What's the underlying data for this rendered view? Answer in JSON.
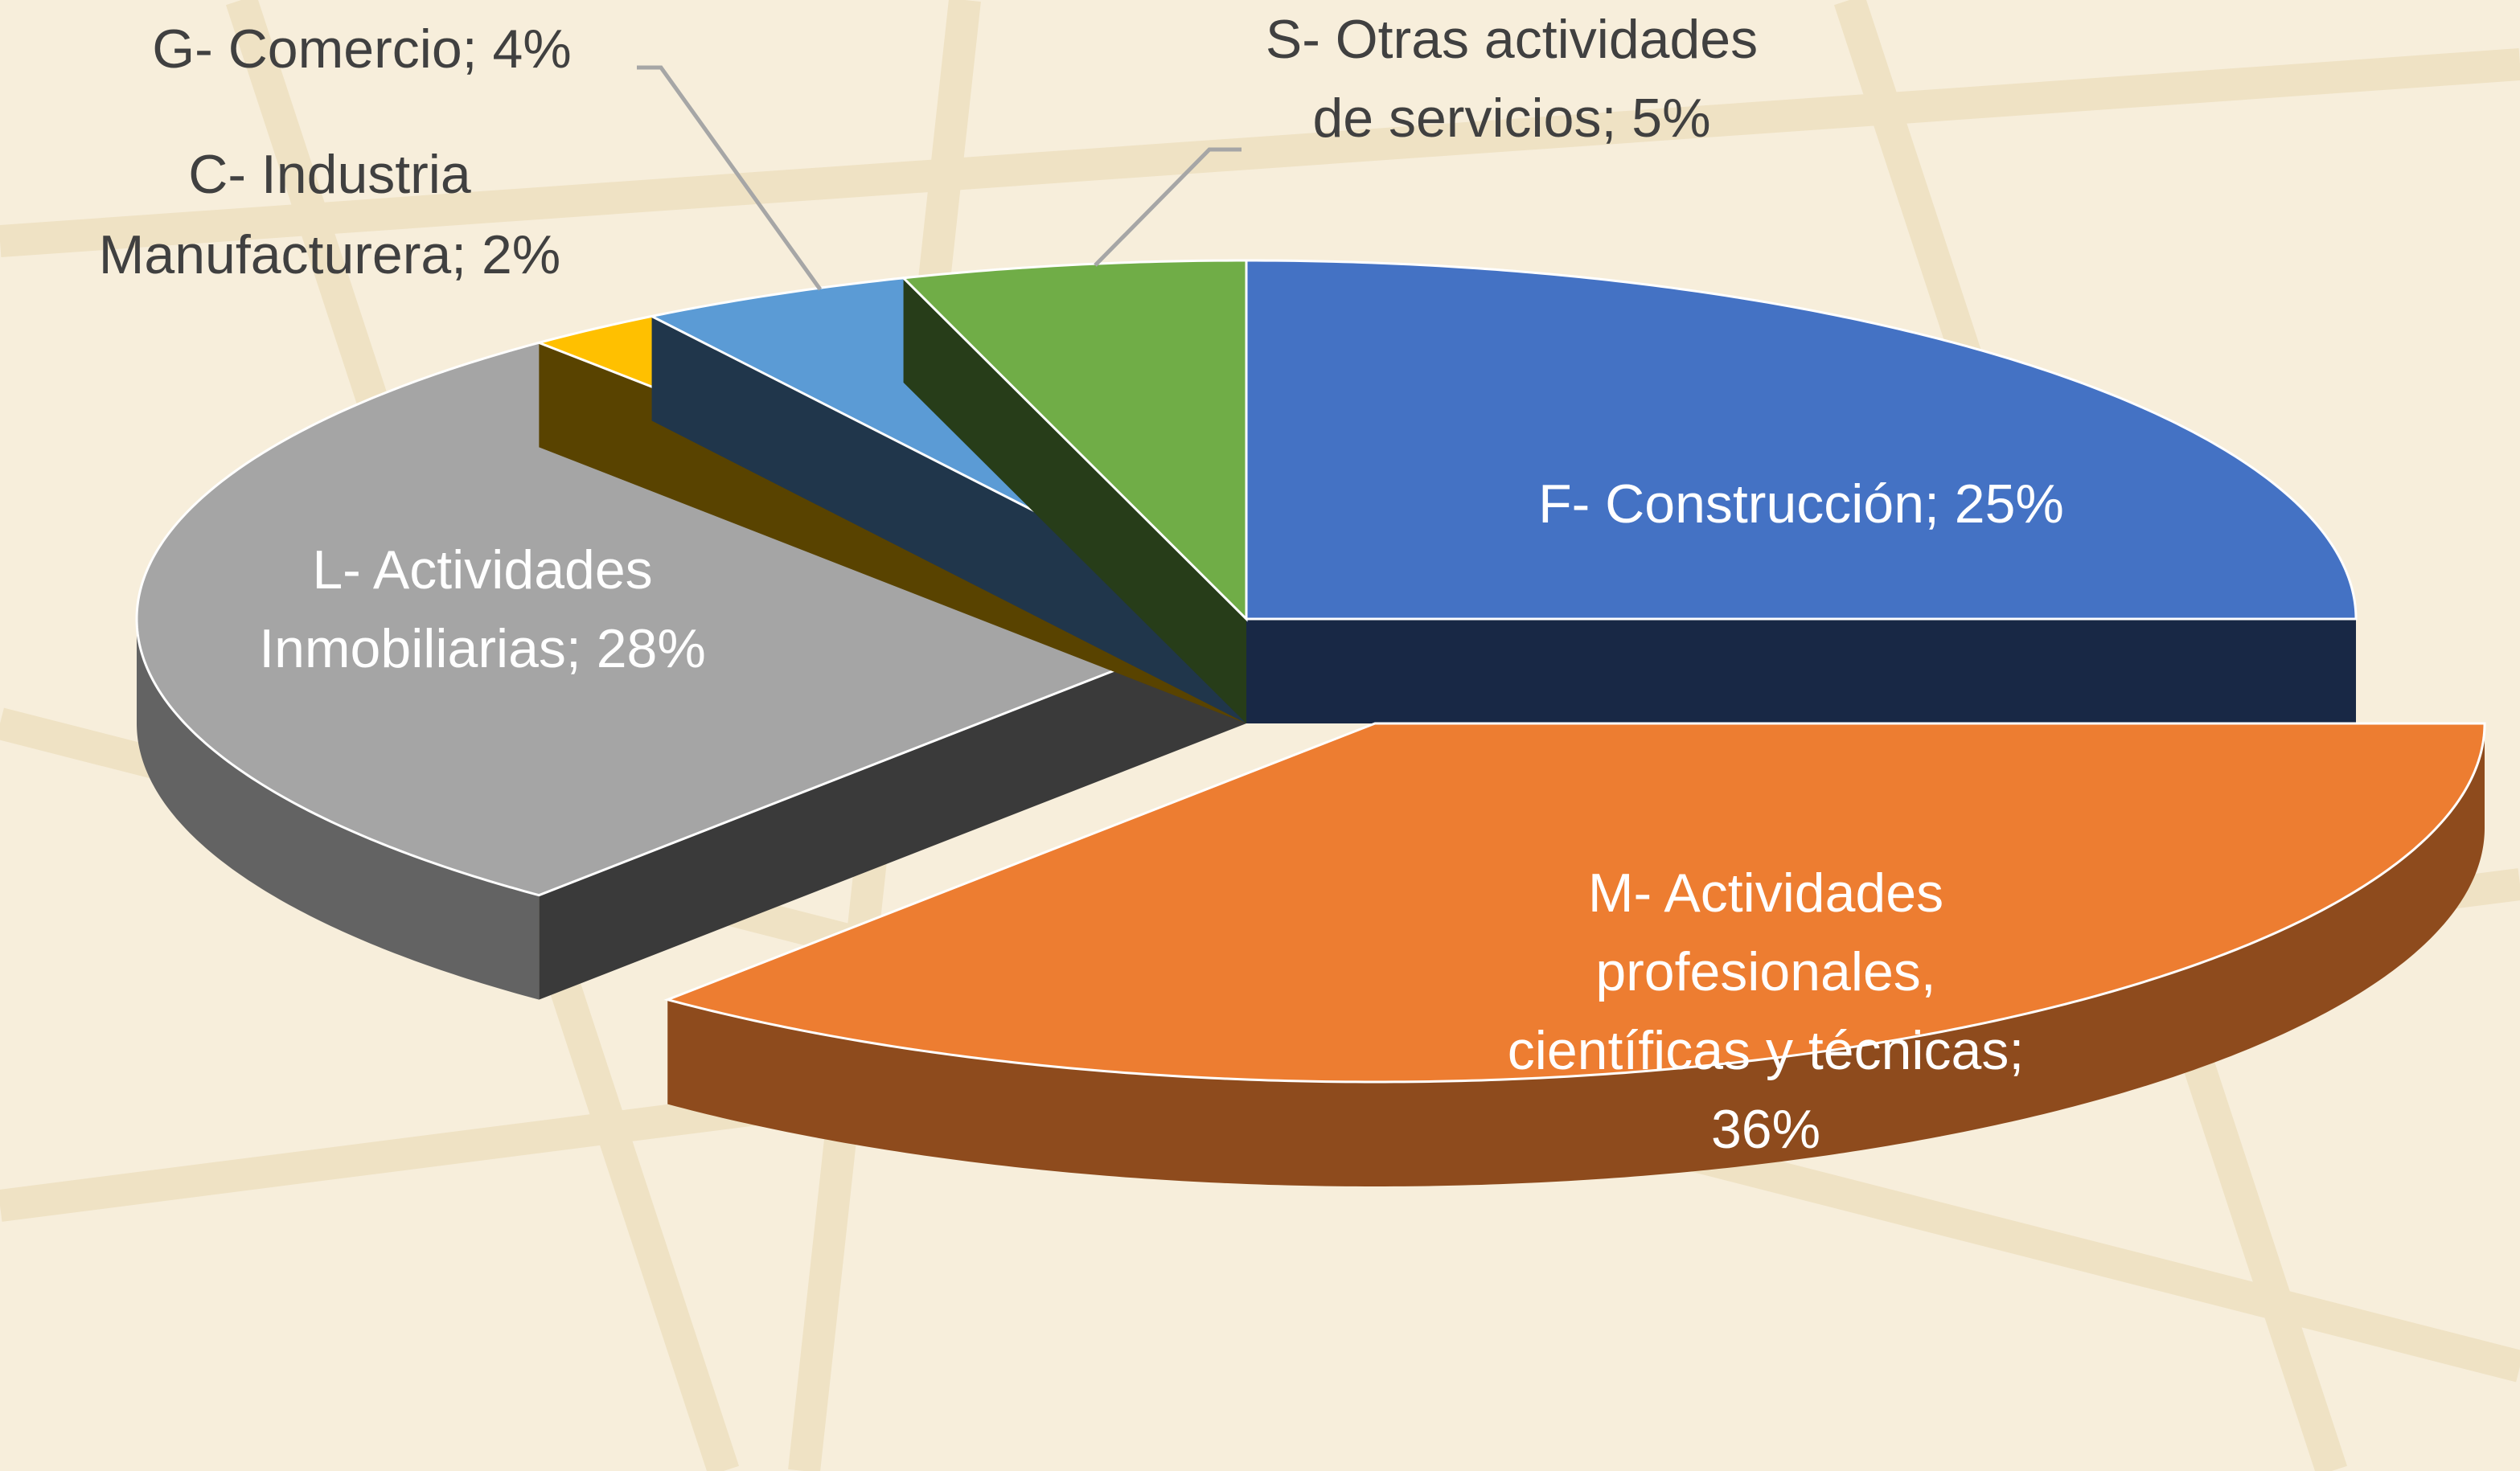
{
  "chart_data": {
    "type": "pie3d",
    "values": [
      25,
      36,
      28,
      2,
      4,
      5
    ],
    "labels": [
      [
        "F- Construcción; 25%"
      ],
      [
        "M- Actividades",
        "profesionales,",
        "científicas y técnicas;",
        "36%"
      ],
      [
        "L- Actividades",
        "Inmobiliarias; 28%"
      ],
      [
        "C- Industria",
        "Manufacturera; 2%"
      ],
      [
        "G- Comercio; 4%"
      ],
      [
        "S- Otras actividades",
        "de servicios; 5%"
      ]
    ],
    "colors": [
      "#4472c4",
      "#ed7d31",
      "#a5a5a5",
      "#ffc000",
      "#5b9bd5",
      "#70ad47"
    ],
    "explode": [
      false,
      true,
      false,
      false,
      false,
      false
    ]
  }
}
